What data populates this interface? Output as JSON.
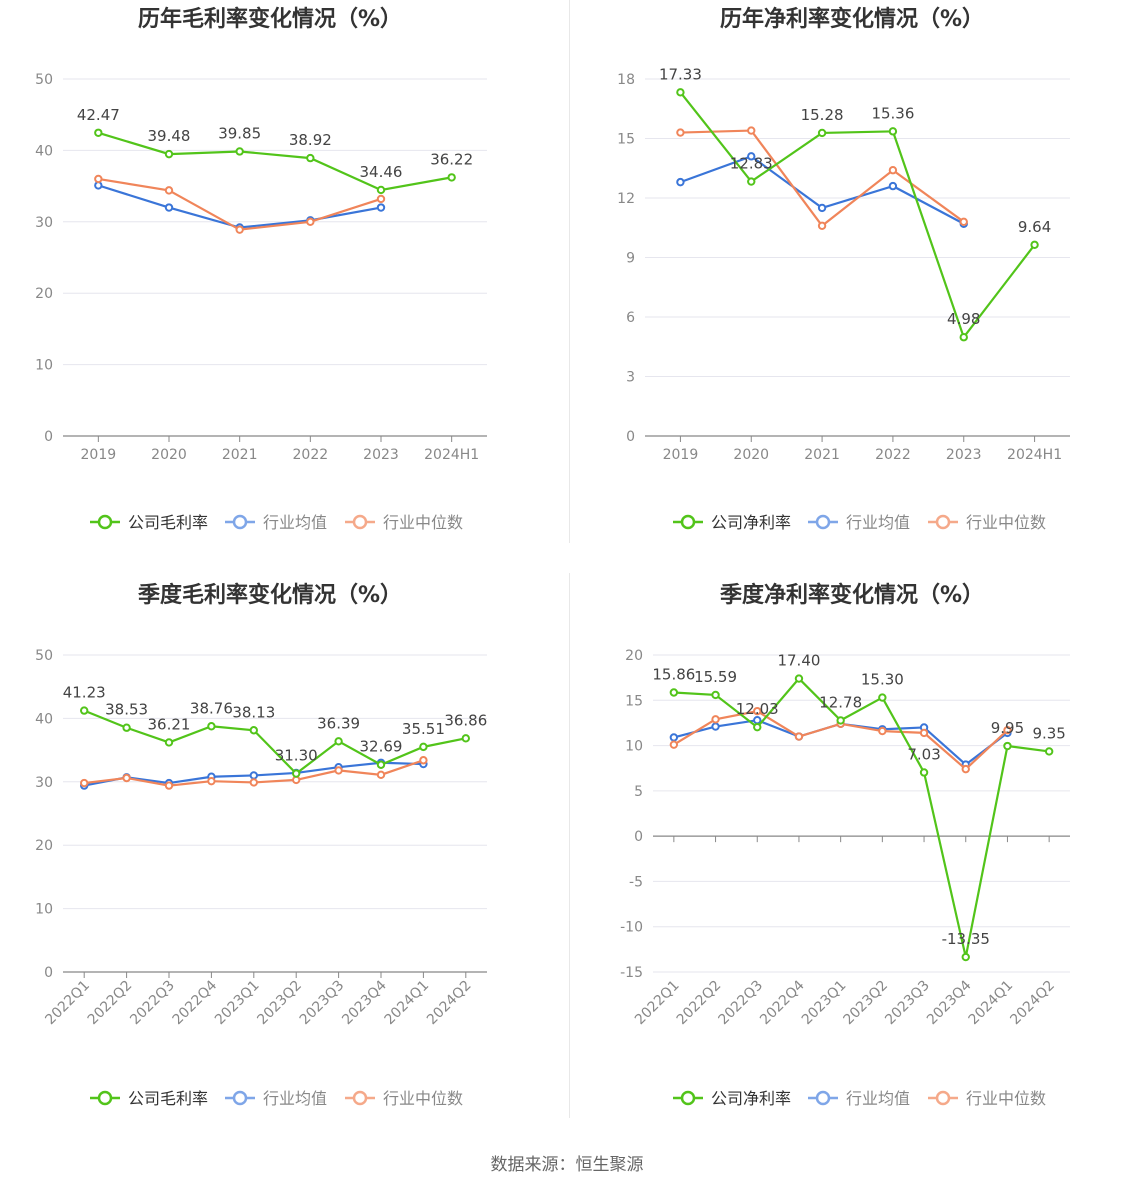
{
  "chart_data": [
    {
      "type": "line",
      "title": "历年毛利率变化情况（%）",
      "categories": [
        "2019",
        "2020",
        "2021",
        "2022",
        "2023",
        "2024H1"
      ],
      "ylim": [
        0,
        50
      ],
      "yticks": [
        0,
        10,
        20,
        30,
        40,
        50
      ],
      "grid": true,
      "legend": "bottom",
      "series": [
        {
          "name": "公司毛利率",
          "color": "#52c41a",
          "labels": true,
          "values": [
            42.47,
            39.48,
            39.85,
            38.92,
            34.46,
            36.22
          ]
        },
        {
          "name": "行业均值",
          "color": "#3a75d8",
          "values": [
            35.1,
            32.0,
            29.2,
            30.2,
            32.0,
            null
          ]
        },
        {
          "name": "行业中位数",
          "color": "#f0855a",
          "values": [
            36.0,
            34.4,
            28.9,
            30.0,
            33.2,
            null
          ]
        }
      ]
    },
    {
      "type": "line",
      "title": "历年净利率变化情况（%）",
      "categories": [
        "2019",
        "2020",
        "2021",
        "2022",
        "2023",
        "2024H1"
      ],
      "ylim": [
        0,
        18
      ],
      "yticks": [
        0,
        3,
        6,
        9,
        12,
        15,
        18
      ],
      "grid": true,
      "legend": "bottom",
      "series": [
        {
          "name": "公司净利率",
          "color": "#52c41a",
          "labels": true,
          "values": [
            17.33,
            12.83,
            15.28,
            15.36,
            4.98,
            9.64
          ]
        },
        {
          "name": "行业均值",
          "color": "#3a75d8",
          "values": [
            12.8,
            14.1,
            11.5,
            12.6,
            10.7,
            null
          ]
        },
        {
          "name": "行业中位数",
          "color": "#f0855a",
          "values": [
            15.3,
            15.4,
            10.6,
            13.4,
            10.8,
            null
          ]
        }
      ]
    },
    {
      "type": "line",
      "title": "季度毛利率变化情况（%）",
      "categories": [
        "2022Q1",
        "2022Q2",
        "2022Q3",
        "2022Q4",
        "2023Q1",
        "2023Q2",
        "2023Q3",
        "2023Q4",
        "2024Q1",
        "2024Q2"
      ],
      "ylim": [
        0,
        50
      ],
      "yticks": [
        0,
        10,
        20,
        30,
        40,
        50
      ],
      "grid": true,
      "legend": "bottom",
      "series": [
        {
          "name": "公司毛利率",
          "color": "#52c41a",
          "labels": true,
          "values": [
            41.23,
            38.53,
            36.21,
            38.76,
            38.13,
            31.3,
            36.39,
            32.69,
            35.51,
            36.86
          ]
        },
        {
          "name": "行业均值",
          "color": "#3a75d8",
          "values": [
            29.4,
            30.7,
            29.8,
            30.8,
            31.0,
            31.4,
            32.3,
            33.0,
            32.8,
            null
          ]
        },
        {
          "name": "行业中位数",
          "color": "#f0855a",
          "values": [
            29.8,
            30.6,
            29.4,
            30.1,
            29.9,
            30.3,
            31.8,
            31.1,
            33.4,
            null
          ]
        }
      ]
    },
    {
      "type": "line",
      "title": "季度净利率变化情况（%）",
      "categories": [
        "2022Q1",
        "2022Q2",
        "2022Q3",
        "2022Q4",
        "2023Q1",
        "2023Q2",
        "2023Q3",
        "2023Q4",
        "2024Q1",
        "2024Q2"
      ],
      "ylim": [
        -15,
        20
      ],
      "yticks": [
        -15,
        -10,
        -5,
        0,
        5,
        10,
        15,
        20
      ],
      "grid": true,
      "legend": "bottom",
      "series": [
        {
          "name": "公司净利率",
          "color": "#52c41a",
          "labels": true,
          "values": [
            15.86,
            15.59,
            12.03,
            17.4,
            12.78,
            15.3,
            7.03,
            -13.35,
            9.95,
            9.35
          ]
        },
        {
          "name": "行业均值",
          "color": "#3a75d8",
          "values": [
            10.9,
            12.1,
            12.8,
            11.0,
            12.4,
            11.8,
            12.0,
            7.9,
            11.4,
            null
          ]
        },
        {
          "name": "行业中位数",
          "color": "#f0855a",
          "values": [
            10.1,
            12.9,
            13.8,
            11.0,
            12.4,
            11.6,
            11.4,
            7.4,
            11.7,
            null
          ]
        }
      ]
    }
  ],
  "footer": {
    "source": "数据来源：恒生聚源"
  }
}
